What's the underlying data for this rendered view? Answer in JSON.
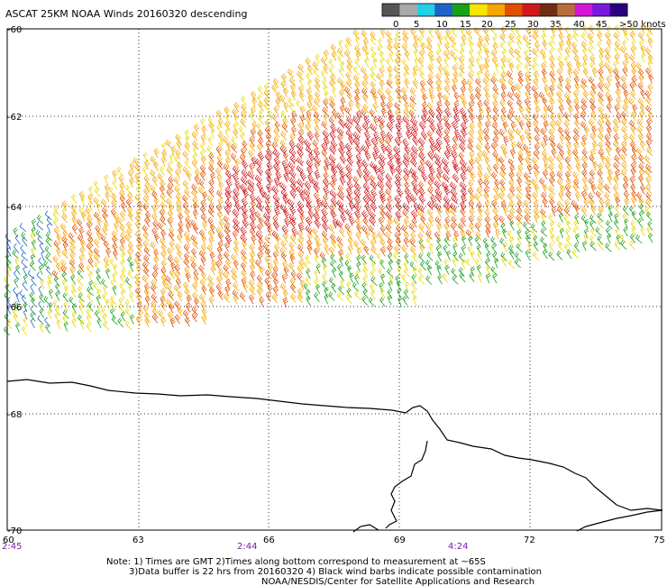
{
  "title": "ASCAT 25KM NOAA Winds 20160320 descending",
  "legend": {
    "labels": [
      "0",
      "5",
      "10",
      "15",
      "20",
      "25",
      "30",
      "35",
      "40",
      "45",
      ">50 knots"
    ],
    "colors": [
      "#555555",
      "#a9a9a9",
      "#22d0e8",
      "#1e64c8",
      "#19a019",
      "#f5e600",
      "#f5a500",
      "#e05000",
      "#d01a1a",
      "#6e2d14",
      "#b86d3c",
      "#d614d6",
      "#7a18e0",
      "#2a0080"
    ]
  },
  "lat_labels": [
    "-60",
    "-62",
    "-64",
    "-66",
    "-68",
    "-70"
  ],
  "lon_labels": [
    "60",
    "63",
    "66",
    "69",
    "72",
    "75"
  ],
  "times": [
    "2:45",
    "2:44",
    "4:24"
  ],
  "notes": [
    "Note: 1) Times are GMT 2)Times along bottom correspond to measurement at ~65S",
    "3)Data buffer is 22 hrs from 20160320 4) Black wind barbs indicate possible contamination",
    "NOAA/NESDIS/Center for Satellite Applications and Research"
  ],
  "wind_field": {
    "swath": "descending",
    "speed_zones": [
      {
        "zone": "north",
        "speed_knots": [
          20,
          30
        ]
      },
      {
        "zone": "center",
        "speed_knots": [
          30,
          40
        ]
      },
      {
        "zone": "west edge",
        "speed_knots": [
          10,
          25
        ]
      },
      {
        "zone": "south-east edge",
        "speed_knots": [
          15,
          25
        ]
      }
    ]
  }
}
